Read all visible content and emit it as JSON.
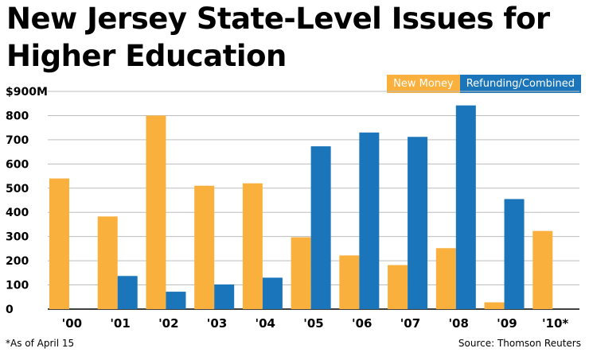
{
  "chart_data": {
    "type": "bar",
    "title": "New Jersey State-Level Issues for Higher Education",
    "categories": [
      "'00",
      "'01",
      "'02",
      "'03",
      "'04",
      "'05",
      "'06",
      "'07",
      "'08",
      "'09",
      "'10*"
    ],
    "series": [
      {
        "name": "New Money",
        "color": "#f9b03d",
        "values": [
          540,
          383,
          800,
          510,
          520,
          297,
          222,
          182,
          252,
          28,
          323
        ]
      },
      {
        "name": "Refunding/Combined",
        "color": "#1b75bb",
        "values": [
          0,
          137,
          72,
          102,
          130,
          673,
          730,
          712,
          842,
          455,
          0
        ]
      }
    ],
    "ylim": [
      0,
      900
    ],
    "yticks": [
      0,
      100,
      200,
      300,
      400,
      500,
      600,
      700,
      800,
      900
    ],
    "ytick_labels": [
      "0",
      "100",
      "200",
      "300",
      "400",
      "500",
      "600",
      "700",
      "800",
      "$900M"
    ],
    "grid": true,
    "legend_position": "top-right",
    "footnote": "*As of April 15",
    "source": "Source: Thomson Reuters"
  }
}
